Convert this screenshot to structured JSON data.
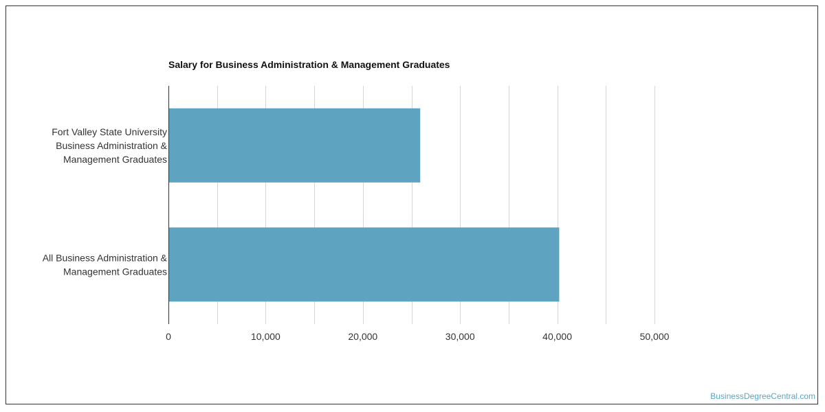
{
  "chart_data": {
    "type": "bar",
    "orientation": "horizontal",
    "title": "Salary for Business Administration & Management Graduates",
    "categories": [
      [
        "Fort Valley State University",
        "Business Administration &",
        "Management Graduates"
      ],
      [
        "All Business Administration &",
        "Management Graduates"
      ]
    ],
    "values": [
      25900,
      40200
    ],
    "xlim": [
      0,
      50000
    ],
    "xticks": [
      0,
      10000,
      20000,
      30000,
      40000,
      50000
    ],
    "xtick_labels": [
      "0",
      "10,000",
      "20,000",
      "30,000",
      "40,000",
      "50,000"
    ],
    "grid": true,
    "bar_color": "#5ea3bf",
    "grid_color": "#d6d6d6"
  },
  "watermark": "BusinessDegreeCentral.com"
}
